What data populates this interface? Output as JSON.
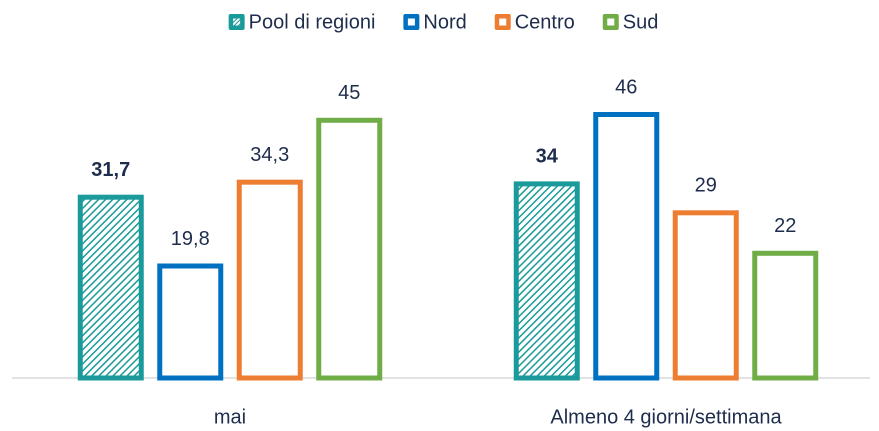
{
  "chart_data": {
    "type": "bar",
    "categories": [
      "mai",
      "Almeno 4 giorni/settimana"
    ],
    "series": [
      {
        "name": "Pool di regioni",
        "color": "#1a9a9a",
        "pattern": "hatch",
        "label_weight": "bold",
        "values": [
          31.7,
          34
        ],
        "value_labels": [
          "31,7",
          "34"
        ]
      },
      {
        "name": "Nord",
        "color": "#0070c0",
        "values": [
          19.8,
          46
        ],
        "value_labels": [
          "19,8",
          "46"
        ]
      },
      {
        "name": "Centro",
        "color": "#ed7d31",
        "values": [
          34.3,
          29
        ],
        "value_labels": [
          "34,3",
          "29"
        ]
      },
      {
        "name": "Sud",
        "color": "#70ad47",
        "values": [
          45,
          22
        ],
        "value_labels": [
          "45",
          "22"
        ]
      }
    ],
    "legend": "top"
  }
}
